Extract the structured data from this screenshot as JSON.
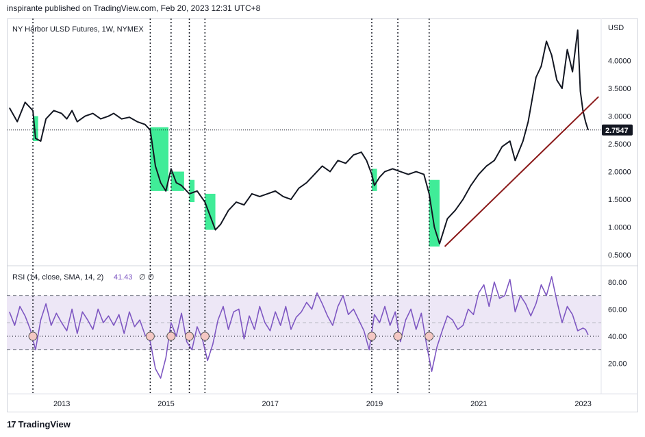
{
  "header": {
    "publish_text": "inspirante published on TradingView.com, Feb 20, 2023 12:31 UTC+8"
  },
  "footer": {
    "brand": "TradingView",
    "brand_icon": "tradingview-logo-icon"
  },
  "colors": {
    "price": "#131722",
    "rsi": "#7e57c2",
    "rsi_band": "#ede7f6",
    "highlight": "#00e676",
    "trend": "#8b1a1a",
    "label_bg": "#131722",
    "marker_fill": "#f4c7c3",
    "marker_stroke": "#555555"
  },
  "chart_data": [
    {
      "type": "line",
      "title": "NY Harbor ULSD Futures, 1W, NYMEX",
      "ylabel": "USD",
      "ylim": [
        0.5,
        4.6
      ],
      "yticks": [
        "0.5000",
        "1.0000",
        "1.5000",
        "2.0000",
        "2.5000",
        "3.0000",
        "3.5000",
        "4.0000"
      ],
      "last_value_label": "2.7547",
      "series": [
        {
          "x": [
            2012.0,
            2012.15,
            2012.3,
            2012.45,
            2012.5,
            2012.6,
            2012.7,
            2012.85,
            2013.0,
            2013.1,
            2013.2,
            2013.3,
            2013.45,
            2013.6,
            2013.75,
            2013.9,
            2014.0,
            2014.15,
            2014.3,
            2014.45,
            2014.6,
            2014.7,
            2014.8,
            2014.9,
            2015.0,
            2015.1,
            2015.2,
            2015.3,
            2015.45,
            2015.6,
            2015.75,
            2015.85,
            2015.95,
            2016.05,
            2016.2,
            2016.35,
            2016.5,
            2016.65,
            2016.8,
            2016.95,
            2017.1,
            2017.25,
            2017.4,
            2017.55,
            2017.7,
            2017.85,
            2018.0,
            2018.15,
            2018.3,
            2018.45,
            2018.6,
            2018.75,
            2018.85,
            2018.95,
            2019.0,
            2019.1,
            2019.2,
            2019.35,
            2019.5,
            2019.65,
            2019.8,
            2019.95,
            2020.05,
            2020.15,
            2020.25,
            2020.3,
            2020.4,
            2020.55,
            2020.7,
            2020.85,
            2021.0,
            2021.15,
            2021.3,
            2021.45,
            2021.6,
            2021.7,
            2021.85,
            2021.95,
            2022.1,
            2022.2,
            2022.3,
            2022.4,
            2022.5,
            2022.6,
            2022.7,
            2022.8,
            2022.9,
            2022.95,
            2023.0,
            2023.05,
            2023.1
          ],
          "y": [
            3.15,
            2.9,
            3.25,
            3.1,
            2.6,
            2.55,
            2.95,
            3.1,
            3.05,
            2.95,
            3.1,
            2.9,
            3.0,
            3.05,
            2.95,
            3.0,
            3.05,
            2.95,
            2.98,
            2.9,
            2.85,
            2.75,
            2.1,
            1.8,
            1.65,
            2.05,
            1.8,
            1.75,
            1.6,
            1.65,
            1.45,
            1.2,
            0.95,
            1.05,
            1.3,
            1.45,
            1.4,
            1.6,
            1.55,
            1.6,
            1.65,
            1.55,
            1.5,
            1.7,
            1.8,
            1.95,
            2.1,
            2.0,
            2.2,
            2.15,
            2.3,
            2.35,
            2.2,
            1.95,
            1.75,
            1.9,
            2.0,
            2.05,
            2.0,
            1.95,
            2.0,
            1.95,
            1.6,
            1.0,
            0.7,
            0.85,
            1.15,
            1.3,
            1.5,
            1.75,
            1.95,
            2.1,
            2.2,
            2.45,
            2.55,
            2.2,
            2.55,
            2.9,
            3.7,
            3.9,
            4.35,
            4.1,
            3.65,
            3.5,
            4.2,
            3.8,
            4.55,
            3.45,
            3.1,
            2.9,
            2.75
          ]
        }
      ],
      "trendline": {
        "x": [
          2020.35,
          2023.3
        ],
        "y": [
          0.65,
          3.35
        ]
      },
      "highlight_boxes": [
        {
          "x": [
            2012.45,
            2012.55
          ],
          "y": [
            2.55,
            3.0
          ]
        },
        {
          "x": [
            2014.7,
            2015.05
          ],
          "y": [
            1.65,
            2.8
          ]
        },
        {
          "x": [
            2015.1,
            2015.35
          ],
          "y": [
            1.65,
            2.0
          ]
        },
        {
          "x": [
            2015.45,
            2015.55
          ],
          "y": [
            1.45,
            1.85
          ]
        },
        {
          "x": [
            2015.75,
            2015.95
          ],
          "y": [
            0.95,
            1.6
          ]
        },
        {
          "x": [
            2018.95,
            2019.05
          ],
          "y": [
            1.65,
            2.05
          ]
        },
        {
          "x": [
            2020.05,
            2020.25
          ],
          "y": [
            0.65,
            1.85
          ]
        }
      ]
    },
    {
      "type": "line",
      "title": "RSI (14, close, SMA, 14, 2)",
      "last_value_label": "41.43",
      "status_glyphs": "∅ ∅",
      "ylim": [
        5,
        87
      ],
      "yticks": [
        "20.00",
        "40.00",
        "60.00",
        "80.00"
      ],
      "band": [
        30,
        70
      ],
      "midline": 50,
      "level_line": 40,
      "series": [
        {
          "x": [
            2012.0,
            2012.1,
            2012.2,
            2012.3,
            2012.4,
            2012.5,
            2012.6,
            2012.7,
            2012.8,
            2012.9,
            2013.0,
            2013.1,
            2013.2,
            2013.3,
            2013.4,
            2013.5,
            2013.6,
            2013.7,
            2013.8,
            2013.9,
            2014.0,
            2014.1,
            2014.2,
            2014.3,
            2014.4,
            2014.5,
            2014.6,
            2014.7,
            2014.8,
            2014.9,
            2015.0,
            2015.1,
            2015.2,
            2015.3,
            2015.4,
            2015.5,
            2015.6,
            2015.7,
            2015.8,
            2015.9,
            2016.0,
            2016.1,
            2016.2,
            2016.3,
            2016.4,
            2016.5,
            2016.6,
            2016.7,
            2016.8,
            2016.9,
            2017.0,
            2017.1,
            2017.2,
            2017.3,
            2017.4,
            2017.5,
            2017.6,
            2017.7,
            2017.8,
            2017.9,
            2018.0,
            2018.1,
            2018.2,
            2018.3,
            2018.4,
            2018.5,
            2018.6,
            2018.7,
            2018.8,
            2018.9,
            2019.0,
            2019.1,
            2019.2,
            2019.3,
            2019.4,
            2019.5,
            2019.6,
            2019.7,
            2019.8,
            2019.9,
            2020.0,
            2020.1,
            2020.2,
            2020.3,
            2020.4,
            2020.5,
            2020.6,
            2020.7,
            2020.8,
            2020.9,
            2021.0,
            2021.1,
            2021.2,
            2021.3,
            2021.4,
            2021.5,
            2021.6,
            2021.7,
            2021.8,
            2021.9,
            2022.0,
            2022.1,
            2022.2,
            2022.3,
            2022.4,
            2022.5,
            2022.6,
            2022.7,
            2022.8,
            2022.9,
            2023.0,
            2023.05,
            2023.1
          ],
          "y": [
            58,
            48,
            62,
            55,
            45,
            30,
            52,
            64,
            48,
            57,
            50,
            44,
            60,
            42,
            58,
            52,
            45,
            60,
            50,
            55,
            48,
            56,
            42,
            58,
            47,
            52,
            41,
            36,
            16,
            9,
            24,
            50,
            40,
            57,
            36,
            30,
            47,
            38,
            22,
            34,
            52,
            62,
            45,
            58,
            60,
            38,
            55,
            45,
            62,
            50,
            44,
            58,
            48,
            62,
            45,
            54,
            58,
            65,
            60,
            72,
            64,
            55,
            48,
            62,
            70,
            56,
            60,
            52,
            44,
            30,
            56,
            50,
            62,
            48,
            58,
            36,
            52,
            60,
            45,
            57,
            34,
            14,
            32,
            44,
            55,
            52,
            45,
            48,
            60,
            56,
            72,
            78,
            62,
            80,
            68,
            70,
            82,
            58,
            70,
            64,
            55,
            64,
            78,
            70,
            84,
            66,
            50,
            62,
            56,
            44,
            46,
            45,
            41
          ]
        }
      ],
      "markers_x": [
        2012.45,
        2014.7,
        2015.1,
        2015.45,
        2015.75,
        2018.95,
        2019.45,
        2020.05
      ]
    }
  ],
  "x_axis": {
    "ticks": [
      {
        "label": "2013",
        "x": 2013.0
      },
      {
        "label": "2015",
        "x": 2015.0
      },
      {
        "label": "2017",
        "x": 2017.0
      },
      {
        "label": "2019",
        "x": 2019.0
      },
      {
        "label": "2021",
        "x": 2021.0
      },
      {
        "label": "2023",
        "x": 2023.0
      }
    ],
    "range": [
      2011.95,
      2023.35
    ]
  },
  "vertical_lines_x": [
    2012.45,
    2014.7,
    2015.1,
    2015.45,
    2015.75,
    2018.95,
    2019.45,
    2020.05
  ]
}
